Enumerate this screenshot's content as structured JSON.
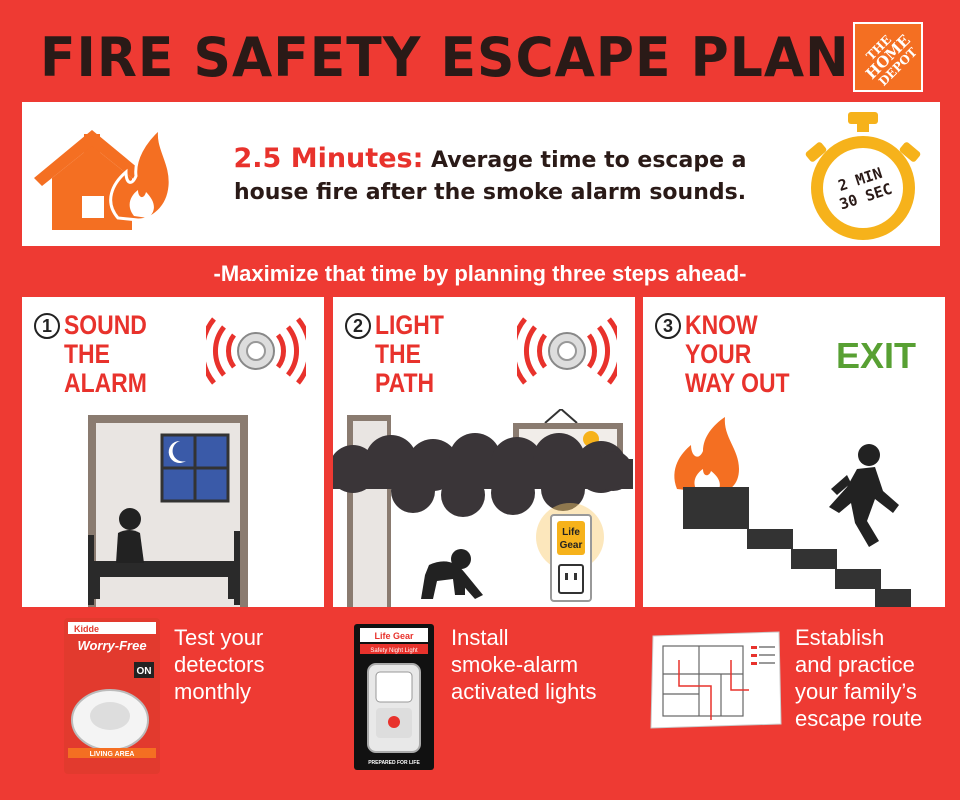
{
  "header": {
    "title": "FIRE SAFETY ESCAPE PLAN",
    "logo_text_line1": "THE",
    "logo_text_line2": "HOME",
    "logo_text_line3": "DEPOT"
  },
  "banner": {
    "highlight": "2.5 Minutes:",
    "text": " Average time to escape a house fire after the smoke alarm sounds.",
    "timer_line1": "2 MIN",
    "timer_line2": "30 SEC"
  },
  "subheading": "-Maximize that time by planning three steps ahead-",
  "steps": [
    {
      "number": "1",
      "title_lines": [
        "SOUND",
        "THE",
        "ALARM"
      ],
      "caption_lines": [
        "Test your",
        "detectors",
        "monthly"
      ],
      "product_text": {
        "brand": "Kidde",
        "name": "Worry-Free",
        "badge": "ON",
        "footer": "LIVING AREA"
      }
    },
    {
      "number": "2",
      "title_lines": [
        "LIGHT",
        "THE",
        "PATH"
      ],
      "caption_lines": [
        "Install",
        "smoke-alarm",
        "activated lights"
      ],
      "light_label_line1": "Life",
      "light_label_line2": "Gear",
      "product_text": {
        "brand": "Life Gear",
        "name": "Safety Night Light",
        "footer": "PREPARED FOR LIFE"
      }
    },
    {
      "number": "3",
      "title_lines": [
        "KNOW",
        "YOUR",
        "WAY OUT"
      ],
      "exit_label": "EXIT",
      "caption_lines": [
        "Establish",
        "and practice",
        "your family’s",
        "escape route"
      ]
    }
  ],
  "colors": {
    "background": "#ee3a33",
    "accent_red": "#e8322c",
    "orange": "#f46f22",
    "timer_yellow": "#f6b21b",
    "exit_green": "#58a033",
    "dark": "#2a1a17"
  }
}
